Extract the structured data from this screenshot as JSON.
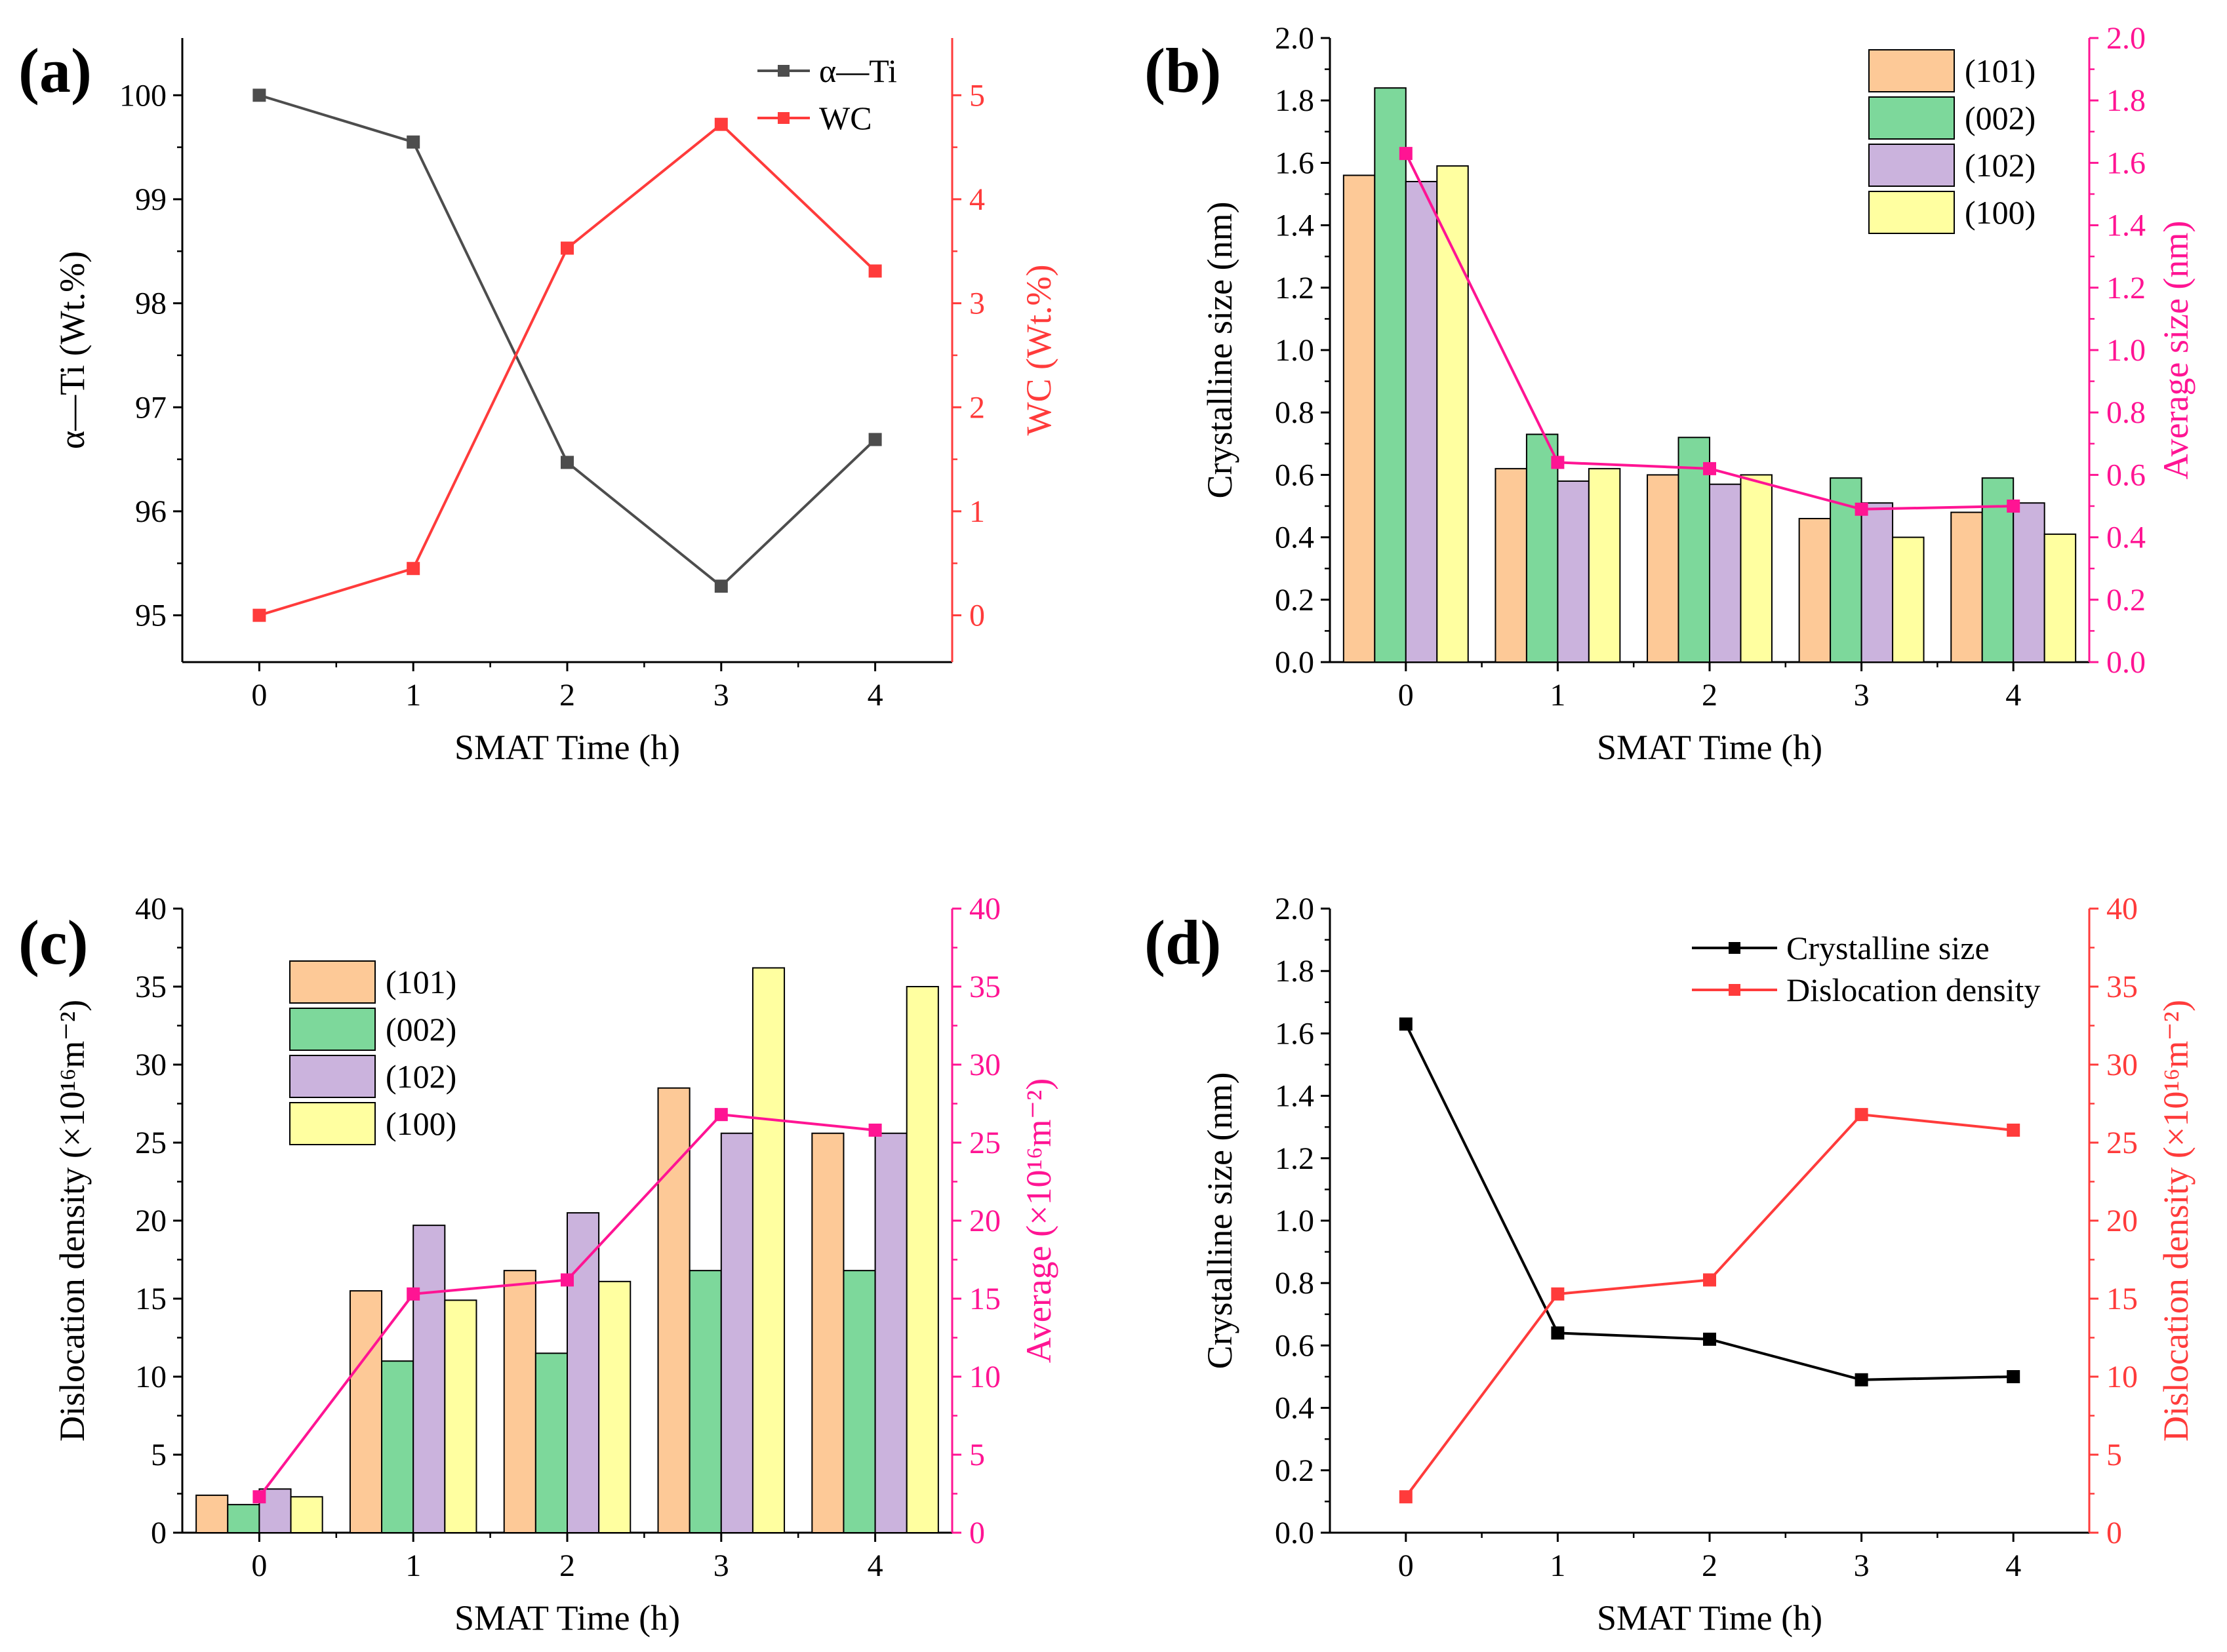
{
  "figure": {
    "colors": {
      "axis": "#000000",
      "black_series": "#000000",
      "gray_series": "#4d4d4d",
      "red_series": "#ff3b3b",
      "magenta_series": "#ff1493",
      "bar_101": "#fdc997",
      "bar_002": "#7dd89b",
      "bar_102": "#cbb3dd",
      "bar_100": "#ffffa0"
    }
  },
  "chart_data": [
    {
      "panel": "(a)",
      "type": "line",
      "xlabel": "SMAT Time (h)",
      "ylabel": "α—Ti (Wt.%)",
      "ylabel_right": "WC (Wt.%)",
      "x": [
        0,
        1,
        2,
        3,
        4
      ],
      "x_ticks": [
        "0",
        "1",
        "2",
        "3",
        "4"
      ],
      "xlim": [
        -0.5,
        4.5
      ],
      "ylim": [
        94.55,
        100.55
      ],
      "ylim_right": [
        -0.45,
        5.55
      ],
      "y_ticks": [
        "95",
        "96",
        "97",
        "98",
        "99",
        "100"
      ],
      "y_ticks_right": [
        "0",
        "1",
        "2",
        "3",
        "4",
        "5"
      ],
      "series": [
        {
          "name": "α—Ti",
          "axis": "left",
          "color": "#4d4d4d",
          "values": [
            100.0,
            99.55,
            96.47,
            95.28,
            96.69
          ]
        },
        {
          "name": "WC",
          "axis": "right",
          "color": "#ff3b3b",
          "values": [
            0.0,
            0.45,
            3.53,
            4.72,
            3.31
          ]
        }
      ],
      "legend": [
        "α—Ti",
        "WC"
      ]
    },
    {
      "panel": "(b)",
      "type": "bar",
      "xlabel": "SMAT Time (h)",
      "ylabel": "Crystalline size (nm)",
      "ylabel_right": "Average size (nm)",
      "categories": [
        "0",
        "1",
        "2",
        "3",
        "4"
      ],
      "ylim": [
        0.0,
        2.0
      ],
      "ylim_right": [
        0.0,
        2.0
      ],
      "y_ticks": [
        "0.0",
        "0.2",
        "0.4",
        "0.6",
        "0.8",
        "1.0",
        "1.2",
        "1.4",
        "1.6",
        "1.8",
        "2.0"
      ],
      "y_ticks_right": [
        "0.0",
        "0.2",
        "0.4",
        "0.6",
        "0.8",
        "1.0",
        "1.2",
        "1.4",
        "1.6",
        "1.8",
        "2.0"
      ],
      "series": [
        {
          "name": "(101)",
          "color": "#fdc997",
          "values": [
            1.56,
            0.62,
            0.6,
            0.46,
            0.48
          ]
        },
        {
          "name": "(002)",
          "color": "#7dd89b",
          "values": [
            1.84,
            0.73,
            0.72,
            0.59,
            0.59
          ]
        },
        {
          "name": "(102)",
          "color": "#cbb3dd",
          "values": [
            1.54,
            0.58,
            0.57,
            0.51,
            0.51
          ]
        },
        {
          "name": "(100)",
          "color": "#ffffa0",
          "values": [
            1.59,
            0.62,
            0.6,
            0.4,
            0.41
          ]
        }
      ],
      "line": {
        "name": "Average size",
        "color": "#ff1493",
        "values": [
          1.63,
          0.64,
          0.62,
          0.49,
          0.5
        ]
      },
      "legend": [
        "(101)",
        "(002)",
        "(102)",
        "(100)"
      ]
    },
    {
      "panel": "(c)",
      "type": "bar",
      "xlabel": "SMAT Time (h)",
      "ylabel": "Dislocation density (×10¹⁶m⁻²)",
      "ylabel_right": "Average (×10¹⁶m⁻²)",
      "categories": [
        "0",
        "1",
        "2",
        "3",
        "4"
      ],
      "ylim": [
        0,
        40
      ],
      "ylim_right": [
        0,
        40
      ],
      "y_ticks": [
        "0",
        "5",
        "10",
        "15",
        "20",
        "25",
        "30",
        "35",
        "40"
      ],
      "y_ticks_right": [
        "0",
        "5",
        "10",
        "15",
        "20",
        "25",
        "30",
        "35",
        "40"
      ],
      "series": [
        {
          "name": "(101)",
          "color": "#fdc997",
          "values": [
            2.4,
            15.5,
            16.8,
            28.5,
            25.6
          ]
        },
        {
          "name": "(002)",
          "color": "#7dd89b",
          "values": [
            1.8,
            11.0,
            11.5,
            16.8,
            16.8
          ]
        },
        {
          "name": "(102)",
          "color": "#cbb3dd",
          "values": [
            2.8,
            19.7,
            20.5,
            25.6,
            25.6
          ]
        },
        {
          "name": "(100)",
          "color": "#ffffa0",
          "values": [
            2.3,
            14.9,
            16.1,
            36.2,
            35.0
          ]
        }
      ],
      "line": {
        "name": "Average",
        "color": "#ff1493",
        "values": [
          2.3,
          15.3,
          16.2,
          26.8,
          25.8
        ]
      },
      "legend": [
        "(101)",
        "(002)",
        "(102)",
        "(100)"
      ]
    },
    {
      "panel": "(d)",
      "type": "line",
      "xlabel": "SMAT Time (h)",
      "ylabel": "Crystalline size (nm)",
      "ylabel_right": "Dislocation density (×10¹⁶m⁻²)",
      "x": [
        0,
        1,
        2,
        3,
        4
      ],
      "x_ticks": [
        "0",
        "1",
        "2",
        "3",
        "4"
      ],
      "xlim": [
        -0.5,
        4.5
      ],
      "ylim": [
        0.0,
        2.0
      ],
      "ylim_right": [
        0,
        40
      ],
      "y_ticks": [
        "0.0",
        "0.2",
        "0.4",
        "0.6",
        "0.8",
        "1.0",
        "1.2",
        "1.4",
        "1.6",
        "1.8",
        "2.0"
      ],
      "y_ticks_right": [
        "0",
        "5",
        "10",
        "15",
        "20",
        "25",
        "30",
        "35",
        "40"
      ],
      "series": [
        {
          "name": "Crystalline size",
          "axis": "left",
          "color": "#000000",
          "values": [
            1.63,
            0.64,
            0.62,
            0.49,
            0.5
          ]
        },
        {
          "name": "Dislocation density",
          "axis": "right",
          "color": "#ff3b3b",
          "values": [
            2.3,
            15.3,
            16.2,
            26.8,
            25.8
          ]
        }
      ],
      "legend": [
        "Crystalline size",
        "Dislocation density"
      ]
    }
  ]
}
